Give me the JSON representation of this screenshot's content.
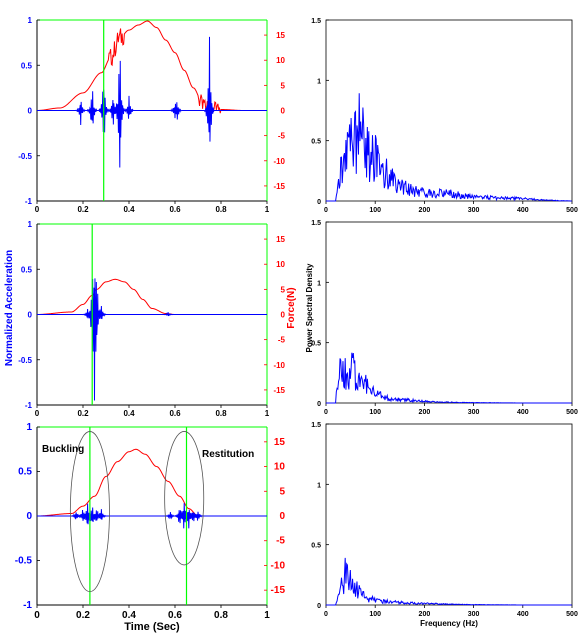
{
  "colors": {
    "accel": "#0000ff",
    "force": "#ff0000",
    "marker": "#00ff00",
    "ellipse": "#555555",
    "axis": "#000000"
  },
  "labels": {
    "left_ylabel": "Normalized Acceleration",
    "right_ylabel": "Force(N)",
    "left_xlabel": "Time (Sec)",
    "psd_ylabel": "Power Spectral Density",
    "psd_xlabel": "Frequency (Hz)",
    "buckling": "Buckling",
    "restitution": "Restitution"
  },
  "chart_data": [
    {
      "type": "line",
      "panel": "time-1",
      "x": [
        0,
        0.1,
        0.2,
        0.28,
        0.32,
        0.36,
        0.4,
        0.44,
        0.48,
        0.52,
        0.56,
        0.6,
        0.64,
        0.68,
        0.72,
        0.76,
        0.8,
        0.9,
        1.0
      ],
      "xlim": [
        0,
        1
      ],
      "ylim": [
        -1,
        1
      ],
      "y2lim": [
        -18,
        18
      ],
      "x_ticks": [
        "0",
        "0.2",
        "0.4",
        "0.6",
        "0.8",
        "1"
      ],
      "y_ticks": [
        "-1",
        "-0.5",
        "0",
        "0.5",
        "1"
      ],
      "y2_ticks": [
        "-15",
        "-10",
        "-5",
        "0",
        "5",
        "10",
        "15"
      ],
      "series": [
        {
          "axis": "right",
          "color": "force",
          "values": [
            0,
            0.5,
            3.5,
            7.5,
            10.5,
            14.5,
            16,
            17,
            17.8,
            16.5,
            14,
            11.5,
            8,
            4.5,
            1.5,
            0.5,
            0.2,
            0,
            0
          ]
        }
      ],
      "accel_spikes": [
        {
          "x": 0.19,
          "amp": 0.18
        },
        {
          "x": 0.24,
          "amp": 0.35
        },
        {
          "x": 0.29,
          "amp": 0.55
        },
        {
          "x": 0.33,
          "amp": 0.25
        },
        {
          "x": 0.36,
          "amp": 1.0
        },
        {
          "x": 0.4,
          "amp": 0.2
        },
        {
          "x": 0.6,
          "amp": 0.12
        },
        {
          "x": 0.61,
          "amp": 0.12
        },
        {
          "x": 0.75,
          "amp": 0.85
        }
      ],
      "markers_x": [
        0.29
      ]
    },
    {
      "type": "line",
      "panel": "time-2",
      "x": [
        0,
        0.15,
        0.2,
        0.24,
        0.26,
        0.3,
        0.34,
        0.38,
        0.42,
        0.46,
        0.5,
        0.56,
        0.6,
        0.8,
        1.0
      ],
      "xlim": [
        0,
        1
      ],
      "ylim": [
        -1,
        1
      ],
      "y2lim": [
        -18,
        18
      ],
      "x_ticks": [
        "0",
        "0.2",
        "0.4",
        "0.6",
        "0.8",
        "1"
      ],
      "y_ticks": [
        "-1",
        "-0.5",
        "0",
        "0.5",
        "1"
      ],
      "y2_ticks": [
        "-15",
        "-10",
        "-5",
        "0",
        "5",
        "10",
        "15"
      ],
      "series": [
        {
          "axis": "right",
          "color": "force",
          "values": [
            0,
            0.5,
            2,
            3.8,
            5,
            6.5,
            7,
            6.5,
            5,
            3,
            1.2,
            0.2,
            0,
            0,
            0
          ]
        }
      ],
      "accel_spikes": [
        {
          "x": 0.22,
          "amp": 0.08
        },
        {
          "x": 0.24,
          "amp": 0.3
        },
        {
          "x": 0.25,
          "amp": 0.95
        },
        {
          "x": 0.26,
          "amp": 0.4
        },
        {
          "x": 0.28,
          "amp": 0.12
        },
        {
          "x": 0.57,
          "amp": 0.03
        }
      ],
      "markers_x": [
        0.24
      ]
    },
    {
      "type": "line",
      "panel": "time-3",
      "x": [
        0,
        0.15,
        0.2,
        0.25,
        0.3,
        0.35,
        0.4,
        0.43,
        0.47,
        0.52,
        0.57,
        0.62,
        0.66,
        0.7,
        0.8,
        1.0
      ],
      "xlim": [
        0,
        1
      ],
      "ylim": [
        -1,
        1
      ],
      "y2lim": [
        -18,
        18
      ],
      "x_ticks": [
        "0",
        "0.2",
        "0.4",
        "0.6",
        "0.8",
        "1"
      ],
      "y_ticks": [
        "-1",
        "-0.5",
        "0",
        "0.5",
        "1"
      ],
      "y2_ticks": [
        "-15",
        "-10",
        "-5",
        "0",
        "5",
        "10",
        "15"
      ],
      "series": [
        {
          "axis": "right",
          "color": "force",
          "values": [
            0,
            0.5,
            2,
            4,
            8,
            11,
            13,
            13.5,
            12.5,
            10,
            7,
            4,
            1.5,
            0,
            0,
            0
          ]
        }
      ],
      "accel_spikes": [
        {
          "x": 0.17,
          "amp": 0.08
        },
        {
          "x": 0.2,
          "amp": 0.12
        },
        {
          "x": 0.22,
          "amp": 0.2
        },
        {
          "x": 0.24,
          "amp": 0.15
        },
        {
          "x": 0.26,
          "amp": 0.12
        },
        {
          "x": 0.28,
          "amp": 0.1
        },
        {
          "x": 0.58,
          "amp": 0.06
        },
        {
          "x": 0.62,
          "amp": 0.15
        },
        {
          "x": 0.64,
          "amp": 0.2
        },
        {
          "x": 0.66,
          "amp": 0.15
        },
        {
          "x": 0.68,
          "amp": 0.1
        },
        {
          "x": 0.7,
          "amp": 0.08
        }
      ],
      "markers_x": [
        0.23,
        0.65
      ],
      "ellipses": [
        {
          "cx": 0.23,
          "rx": 0.085,
          "cy": 0.05,
          "ry": 0.9
        },
        {
          "cx": 0.64,
          "rx": 0.085,
          "cy": 0.2,
          "ry": 0.75
        }
      ]
    },
    {
      "type": "line",
      "panel": "psd-1",
      "xlim": [
        0,
        500
      ],
      "ylim": [
        0,
        1.5
      ],
      "x_ticks": [
        "0",
        "100",
        "200",
        "300",
        "400",
        "500"
      ],
      "y_ticks": [
        "0",
        "0.5",
        "1",
        "1.5"
      ],
      "x": [
        0,
        20,
        30,
        40,
        50,
        60,
        70,
        80,
        100,
        120,
        150,
        200,
        250,
        300,
        350,
        400,
        450,
        500
      ],
      "series": [
        {
          "color": "accel",
          "values": [
            0,
            0.02,
            0.45,
            0.55,
            0.7,
            0.85,
            1.12,
            0.65,
            0.55,
            0.4,
            0.2,
            0.1,
            0.1,
            0.05,
            0.04,
            0.03,
            0.01,
            0
          ]
        }
      ]
    },
    {
      "type": "line",
      "panel": "psd-2",
      "xlim": [
        0,
        500
      ],
      "ylim": [
        0,
        1.5
      ],
      "x_ticks": [
        "0",
        "100",
        "200",
        "300",
        "400",
        "500"
      ],
      "y_ticks": [
        "0",
        "0.5",
        "1",
        "1.5"
      ],
      "x": [
        0,
        15,
        25,
        35,
        45,
        55,
        65,
        80,
        100,
        130,
        160,
        200,
        250,
        300,
        400,
        500
      ],
      "series": [
        {
          "color": "accel",
          "values": [
            0,
            0.02,
            0.35,
            0.5,
            0.38,
            0.48,
            0.35,
            0.25,
            0.12,
            0.05,
            0.04,
            0.02,
            0.01,
            0.005,
            0,
            0
          ]
        }
      ]
    },
    {
      "type": "line",
      "panel": "psd-3",
      "xlim": [
        0,
        500
      ],
      "ylim": [
        0,
        1.5
      ],
      "x_ticks": [
        "0",
        "100",
        "200",
        "300",
        "400",
        "500"
      ],
      "y_ticks": [
        "0",
        "0.5",
        "1",
        "1.5"
      ],
      "x": [
        0,
        20,
        30,
        40,
        50,
        60,
        70,
        80,
        100,
        130,
        160,
        200,
        250,
        300,
        400,
        500
      ],
      "series": [
        {
          "color": "accel",
          "values": [
            0,
            0.02,
            0.2,
            0.42,
            0.3,
            0.22,
            0.15,
            0.1,
            0.06,
            0.04,
            0.03,
            0.02,
            0.01,
            0.005,
            0,
            0
          ]
        }
      ]
    }
  ]
}
